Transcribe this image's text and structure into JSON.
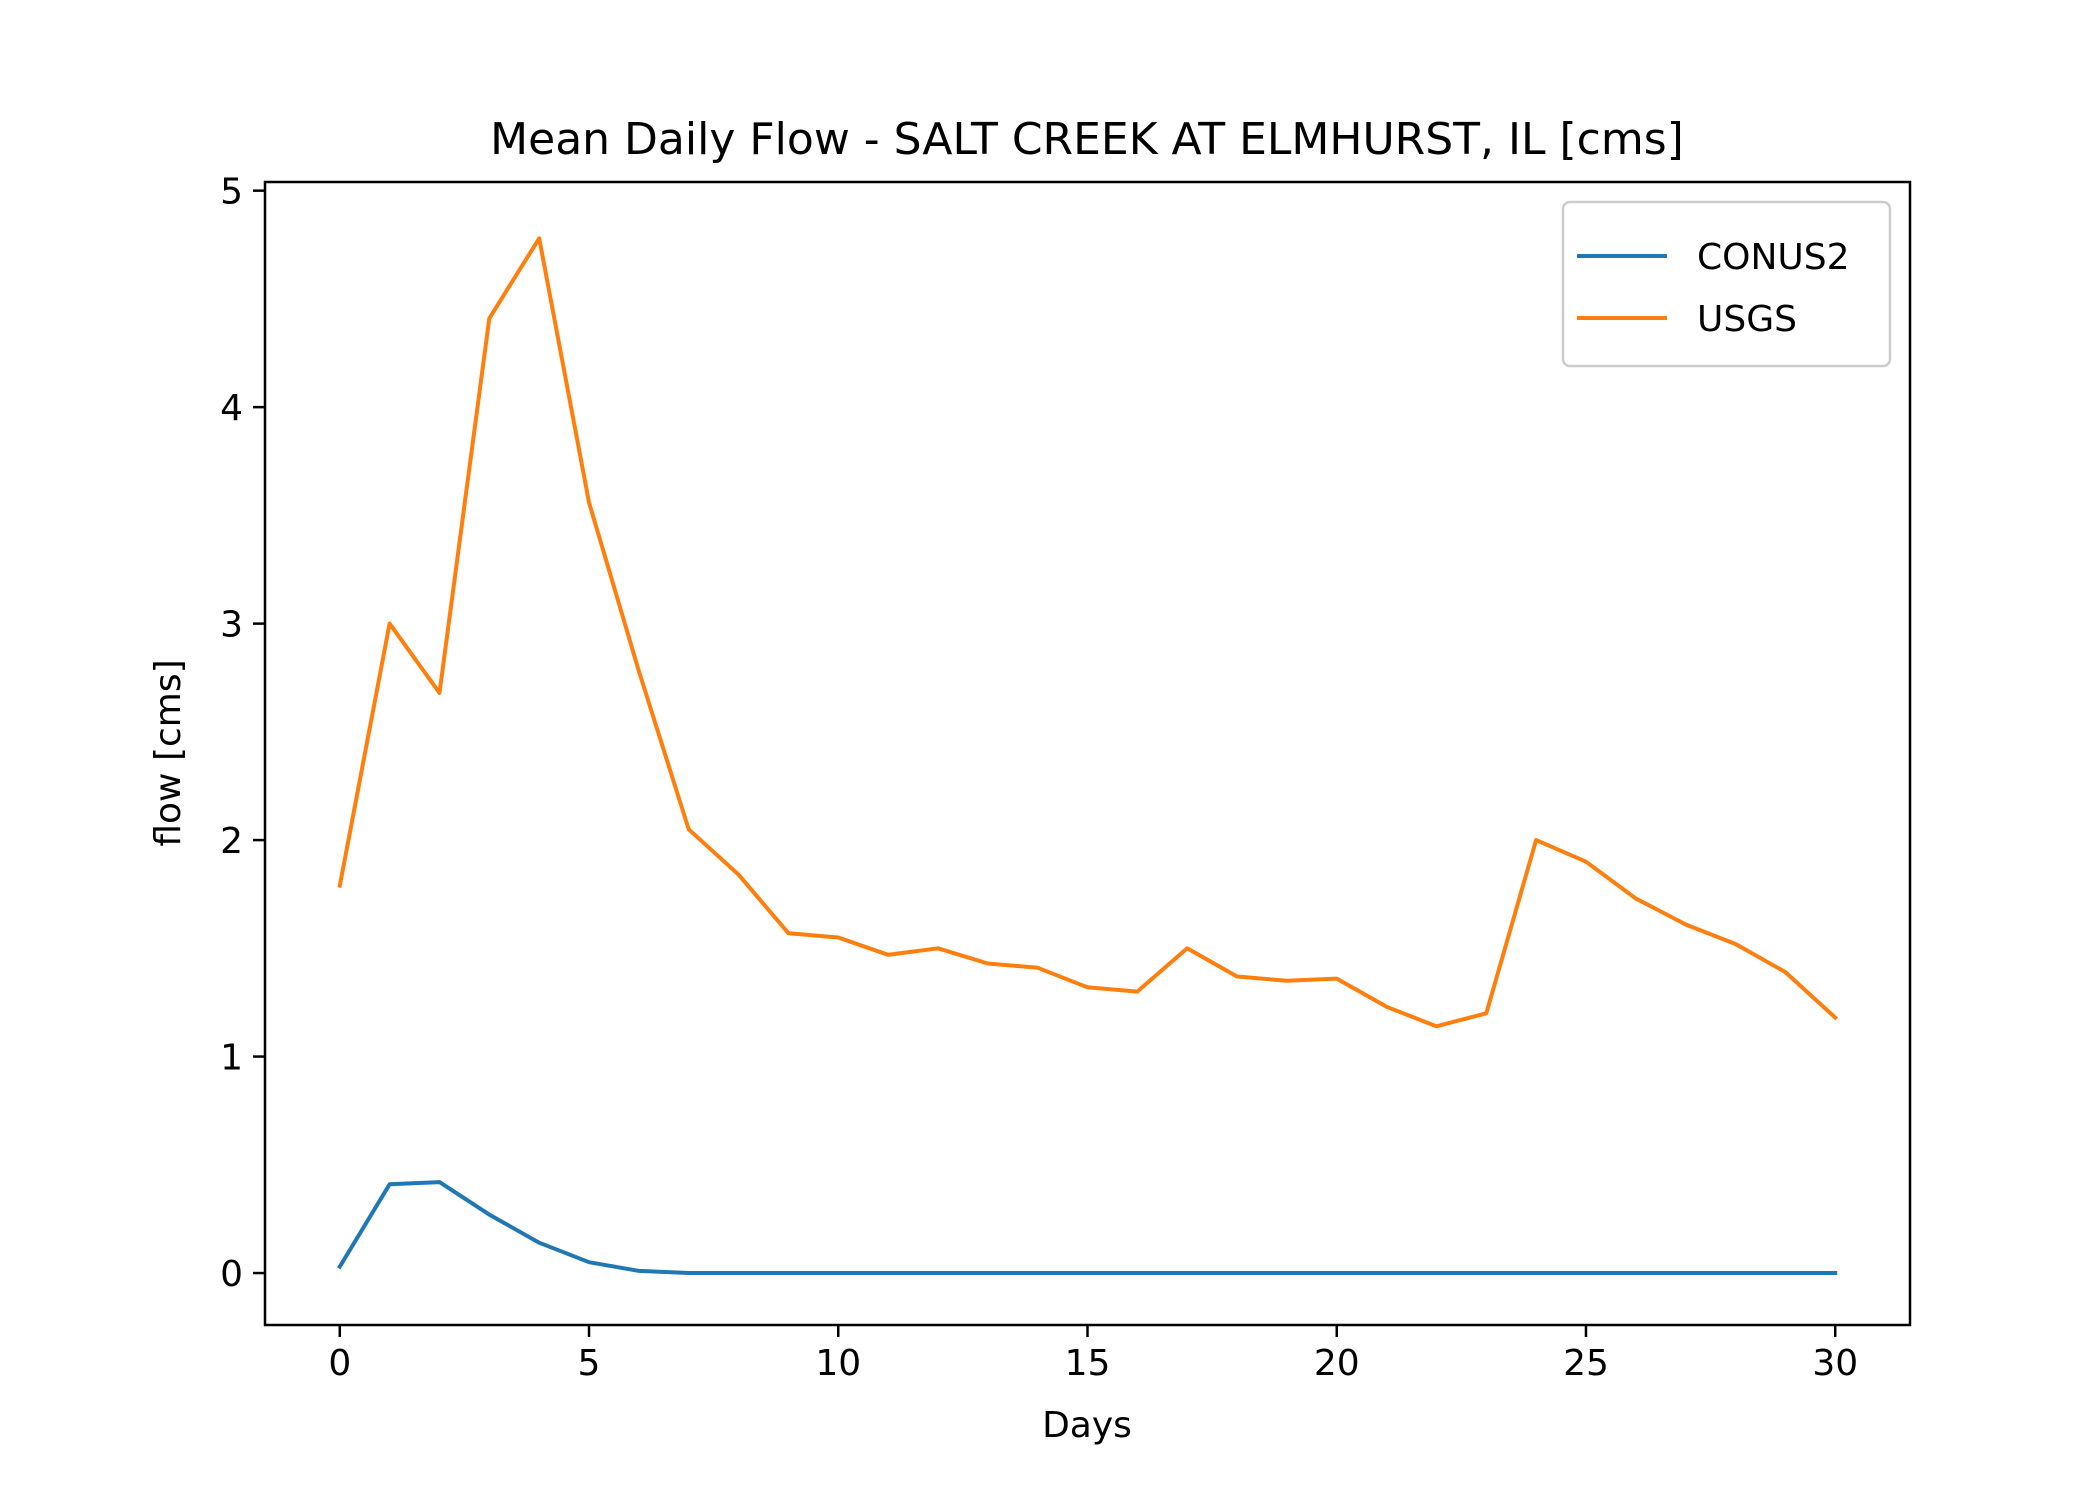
{
  "chart_data": {
    "type": "line",
    "title": "Mean Daily Flow - SALT CREEK AT ELMHURST, IL [cms]",
    "xlabel": "Days",
    "ylabel": "flow [cms]",
    "xlim": [
      -1.5,
      31.5
    ],
    "ylim": [
      -0.24,
      5.04
    ],
    "xticks": [
      0,
      5,
      10,
      15,
      20,
      25,
      30
    ],
    "yticks": [
      0,
      1,
      2,
      3,
      4,
      5
    ],
    "grid": false,
    "legend_position": "top-right",
    "x": [
      0,
      1,
      2,
      3,
      4,
      5,
      6,
      7,
      8,
      9,
      10,
      11,
      12,
      13,
      14,
      15,
      16,
      17,
      18,
      19,
      20,
      21,
      22,
      23,
      24,
      25,
      26,
      27,
      28,
      29,
      30
    ],
    "series": [
      {
        "name": "CONUS2",
        "color": "#1f77b4",
        "values": [
          0.03,
          0.41,
          0.42,
          0.27,
          0.14,
          0.05,
          0.01,
          0.0,
          0.0,
          0.0,
          0.0,
          0.0,
          0.0,
          0.0,
          0.0,
          0.0,
          0.0,
          0.0,
          0.0,
          0.0,
          0.0,
          0.0,
          0.0,
          0.0,
          0.0,
          0.0,
          0.0,
          0.0,
          0.0,
          0.0,
          0.0
        ]
      },
      {
        "name": "USGS",
        "color": "#ff7f0e",
        "values": [
          1.79,
          3.0,
          2.68,
          4.41,
          4.78,
          3.56,
          2.78,
          2.05,
          1.84,
          1.57,
          1.55,
          1.47,
          1.5,
          1.43,
          1.41,
          1.32,
          1.3,
          1.5,
          1.37,
          1.35,
          1.36,
          1.23,
          1.14,
          1.2,
          2.0,
          1.9,
          1.73,
          1.61,
          1.52,
          1.39,
          1.18
        ]
      }
    ]
  }
}
